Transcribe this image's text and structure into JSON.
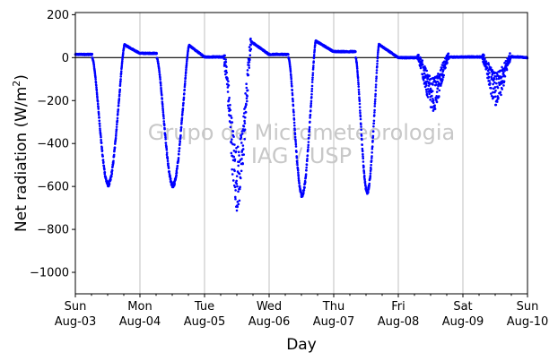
{
  "chart_data": {
    "type": "scatter",
    "title": "",
    "xlabel": "Day",
    "ylabel": "Net radiation (W/m²)",
    "xlabel_text": "Day",
    "ylabel_main": "Net radiation (W/m",
    "ylabel_sup": "2",
    "ylabel_close": ")",
    "xlim": [
      0,
      7
    ],
    "ylim": [
      -1100,
      210
    ],
    "yticks": [
      200,
      0,
      -200,
      -400,
      -600,
      -800,
      -1000
    ],
    "ytick_labels": [
      "200",
      "0",
      "−200",
      "−400",
      "−600",
      "−800",
      "−1000"
    ],
    "xticks": [
      {
        "x": 0,
        "day": "Sun",
        "date": "Aug-03"
      },
      {
        "x": 1,
        "day": "Mon",
        "date": "Aug-04"
      },
      {
        "x": 2,
        "day": "Tue",
        "date": "Aug-05"
      },
      {
        "x": 3,
        "day": "Wed",
        "date": "Aug-06"
      },
      {
        "x": 4,
        "day": "Thu",
        "date": "Aug-07"
      },
      {
        "x": 5,
        "day": "Fri",
        "date": "Aug-08"
      },
      {
        "x": 6,
        "day": "Sat",
        "date": "Aug-09"
      },
      {
        "x": 7,
        "day": "Sun",
        "date": "Aug-10"
      }
    ],
    "grid_x": true,
    "zero_line": true,
    "watermark": [
      "Grupo de Micrometeorologia",
      "IAG / USP"
    ],
    "series_color": "#0000ff",
    "days": [
      {
        "night": 15,
        "day_start": 0.26,
        "peak_val": -590,
        "peak_t": 0.51,
        "day_end": 0.76,
        "evening": 60,
        "noise": 8
      },
      {
        "night": 20,
        "day_start": 0.26,
        "peak_val": -595,
        "peak_t": 0.51,
        "day_end": 0.76,
        "evening": 58,
        "noise": 8
      },
      {
        "night": 3,
        "day_start": 0.3,
        "peak_val": -560,
        "peak_t": 0.53,
        "day_end": 0.72,
        "evening": 75,
        "noise": 120
      },
      {
        "night": 15,
        "day_start": 0.3,
        "peak_val": -640,
        "peak_t": 0.51,
        "day_end": 0.72,
        "evening": 78,
        "noise": 8
      },
      {
        "night": 28,
        "day_start": 0.34,
        "peak_val": -625,
        "peak_t": 0.52,
        "day_end": 0.7,
        "evening": 62,
        "noise": 8
      },
      {
        "night": 0,
        "day_start": 0.3,
        "peak_val": -170,
        "peak_t": 0.55,
        "day_end": 0.78,
        "evening": 2,
        "noise": 60
      },
      {
        "night": 3,
        "day_start": 0.3,
        "peak_val": -145,
        "peak_t": 0.55,
        "day_end": 0.74,
        "evening": 5,
        "noise": 60
      }
    ],
    "points_per_day": 420
  }
}
